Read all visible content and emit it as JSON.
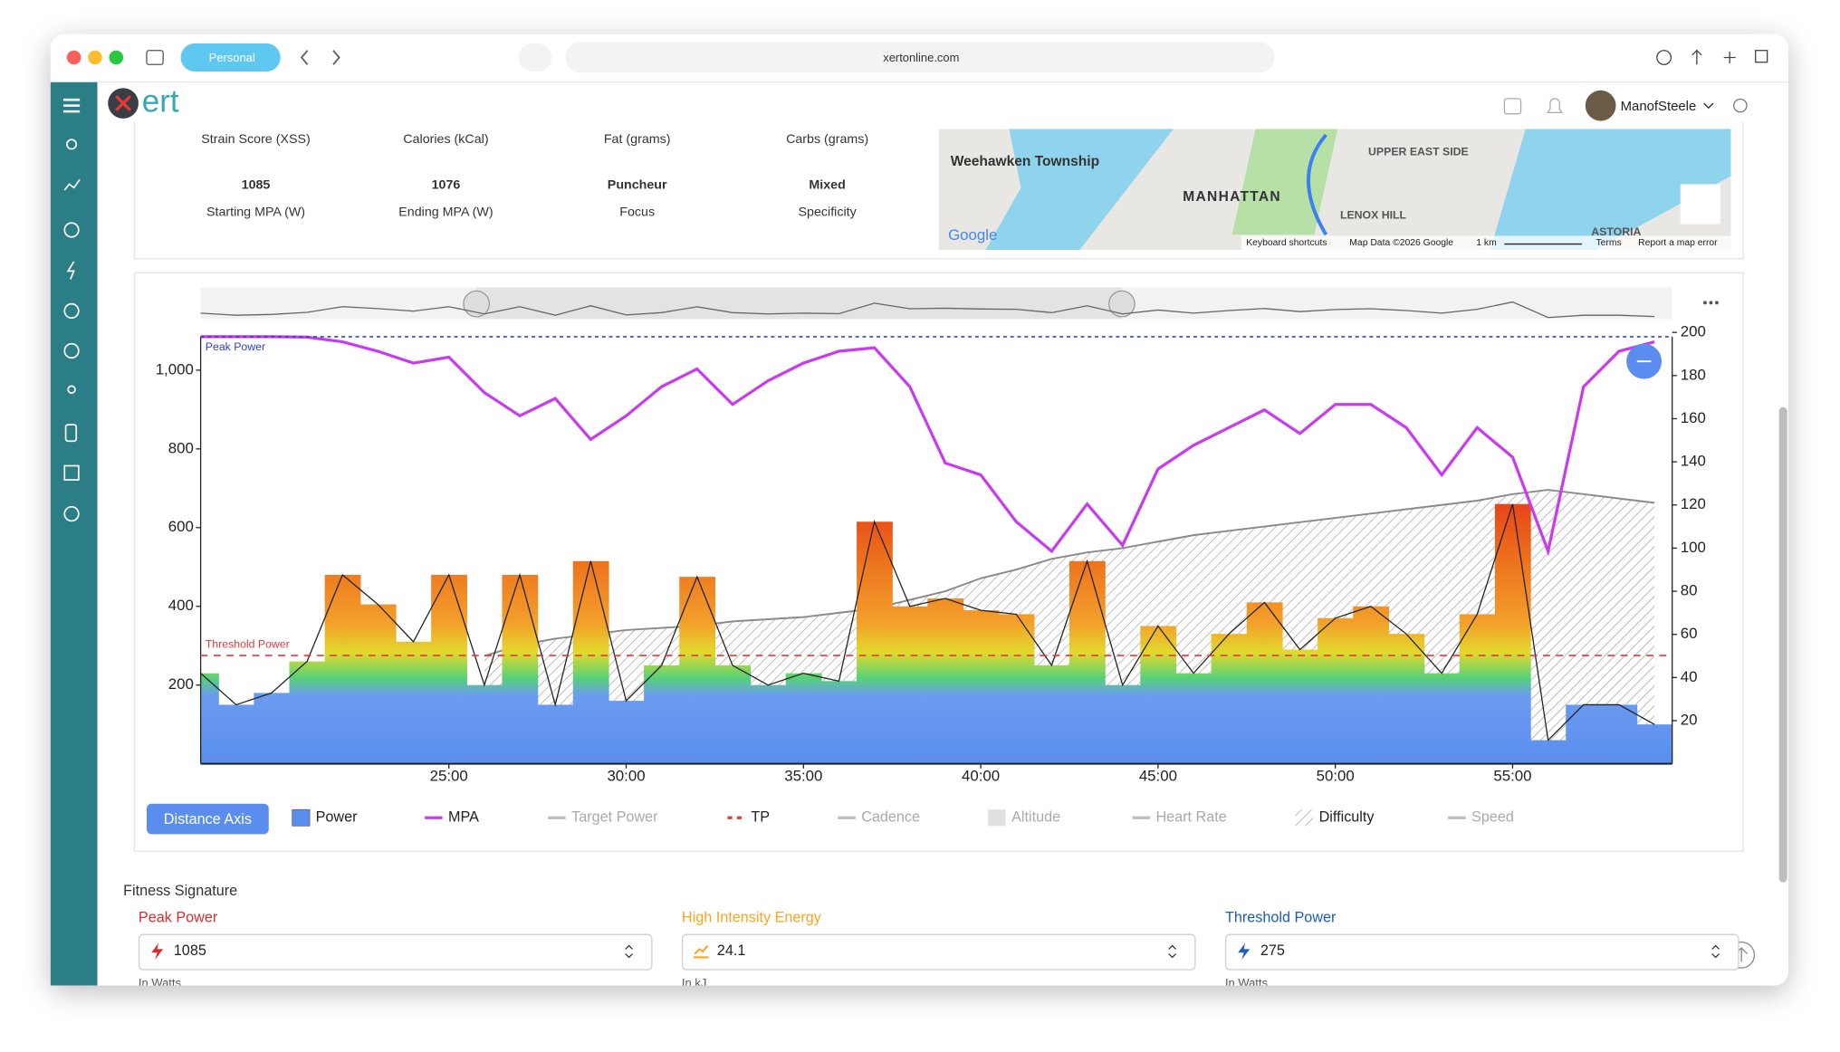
{
  "browser": {
    "profile": "Personal",
    "url": "xertonline.com"
  },
  "header": {
    "logo": "ert",
    "user": "ManofSteele"
  },
  "summary": {
    "labels_top": [
      "Strain Score (XSS)",
      "Calories (kCal)",
      "Fat (grams)",
      "Carbs (grams)"
    ],
    "items": [
      {
        "value": 1085,
        "label": "Starting MPA (W)"
      },
      {
        "value": 1076,
        "label": "Ending MPA (W)"
      },
      {
        "value": "Puncheur",
        "label": "Focus"
      },
      {
        "value": "Mixed",
        "label": "Specificity"
      }
    ]
  },
  "map": {
    "labels": [
      "Weehawken Township",
      "MANHATTAN",
      "UPPER EAST SIDE",
      "LENOX HILL",
      "ASTORIA",
      "Google"
    ],
    "footer": [
      "Keyboard shortcuts",
      "Map Data ©2026 Google",
      "1 km",
      "Terms",
      "Report a map error"
    ]
  },
  "chart_data": {
    "type": "line",
    "x": [
      18,
      19,
      20,
      21,
      22,
      23,
      24,
      25,
      26,
      27,
      28,
      29,
      30,
      31,
      32,
      33,
      34,
      35,
      36,
      37,
      38,
      39,
      40,
      41,
      42,
      43,
      44,
      45,
      46,
      47,
      48,
      49,
      50,
      51,
      52,
      53,
      54,
      55,
      56,
      57,
      58,
      59
    ],
    "xlim": [
      18,
      59.5
    ],
    "xticks": [
      {
        "value": 25,
        "label": "25:00"
      },
      {
        "value": 30,
        "label": "30:00"
      },
      {
        "value": 35,
        "label": "35:00"
      },
      {
        "value": 40,
        "label": "40:00"
      },
      {
        "value": 45,
        "label": "45:00"
      },
      {
        "value": 50,
        "label": "50:00"
      },
      {
        "value": 55,
        "label": "55:00"
      }
    ],
    "ylim": [
      0,
      1085
    ],
    "yticks": [
      200,
      400,
      600,
      800,
      {
        "value": 1000,
        "label": "1,000"
      }
    ],
    "y2lim": [
      0,
      198
    ],
    "y2ticks": [
      20,
      40,
      60,
      80,
      100,
      120,
      140,
      160,
      180,
      200
    ],
    "annotations": [
      {
        "text": "Peak Power",
        "value": 1085,
        "color": "#2f3fd0"
      },
      {
        "text": "Threshold Power",
        "value": 275,
        "color": "#e53935"
      }
    ],
    "series": [
      {
        "name": "Power",
        "style": "bars",
        "color": "#5b8def",
        "visible": true,
        "values": [
          230,
          150,
          180,
          260,
          480,
          405,
          310,
          480,
          200,
          480,
          150,
          515,
          160,
          250,
          475,
          250,
          200,
          230,
          210,
          615,
          400,
          420,
          390,
          380,
          250,
          515,
          200,
          350,
          230,
          330,
          410,
          290,
          370,
          400,
          330,
          230,
          380,
          660,
          60,
          150,
          150,
          100
        ]
      },
      {
        "name": "MPA",
        "style": "line",
        "color": "#c83cf0",
        "visible": true,
        "values": [
          1085,
          1085,
          1085,
          1084,
          1072,
          1048,
          1018,
          1033,
          943,
          884,
          928,
          824,
          884,
          958,
          1003,
          913,
          973,
          1018,
          1048,
          1057,
          958,
          764,
          734,
          615,
          540,
          660,
          555,
          749,
          809,
          854,
          899,
          839,
          913,
          913,
          854,
          734,
          854,
          779,
          540,
          958,
          1048,
          1072
        ]
      },
      {
        "name": "Target Power",
        "style": "line",
        "color": "#bdbdbd",
        "visible": false
      },
      {
        "name": "TP",
        "style": "dash",
        "color": "#e53935",
        "visible": true
      },
      {
        "name": "Cadence",
        "style": "line",
        "color": "#bdbdbd",
        "visible": false
      },
      {
        "name": "Altitude",
        "style": "area",
        "color": "#e0e0e0",
        "visible": false
      },
      {
        "name": "Heart Rate",
        "style": "line",
        "color": "#bdbdbd",
        "visible": false
      },
      {
        "name": "Difficulty",
        "style": "area-hatch",
        "color": "#8a8a8a",
        "visible": true,
        "axis": "y2",
        "values": [
          null,
          null,
          null,
          null,
          null,
          null,
          null,
          null,
          50,
          55,
          58,
          60,
          62,
          63,
          64,
          66,
          67,
          68,
          70,
          72,
          76,
          80,
          86,
          90,
          95,
          98,
          100,
          103,
          106,
          108,
          110,
          112,
          114,
          116,
          118,
          120,
          122,
          125,
          127,
          125,
          123,
          121
        ]
      },
      {
        "name": "Speed",
        "style": "line",
        "color": "#bdbdbd",
        "visible": false
      }
    ]
  },
  "controls": {
    "distance_axis": "Distance Axis"
  },
  "fitness": {
    "title": "Fitness Signature",
    "fields": [
      {
        "label": "Peak Power",
        "value": 1085,
        "unit": "In Watts",
        "color": "#d32f2f"
      },
      {
        "label": "High Intensity Energy",
        "value": 24.1,
        "unit": "In kJ",
        "color": "#f5a623"
      },
      {
        "label": "Threshold Power",
        "value": 275,
        "unit": "In Watts",
        "color": "#1e5bb8"
      }
    ]
  }
}
